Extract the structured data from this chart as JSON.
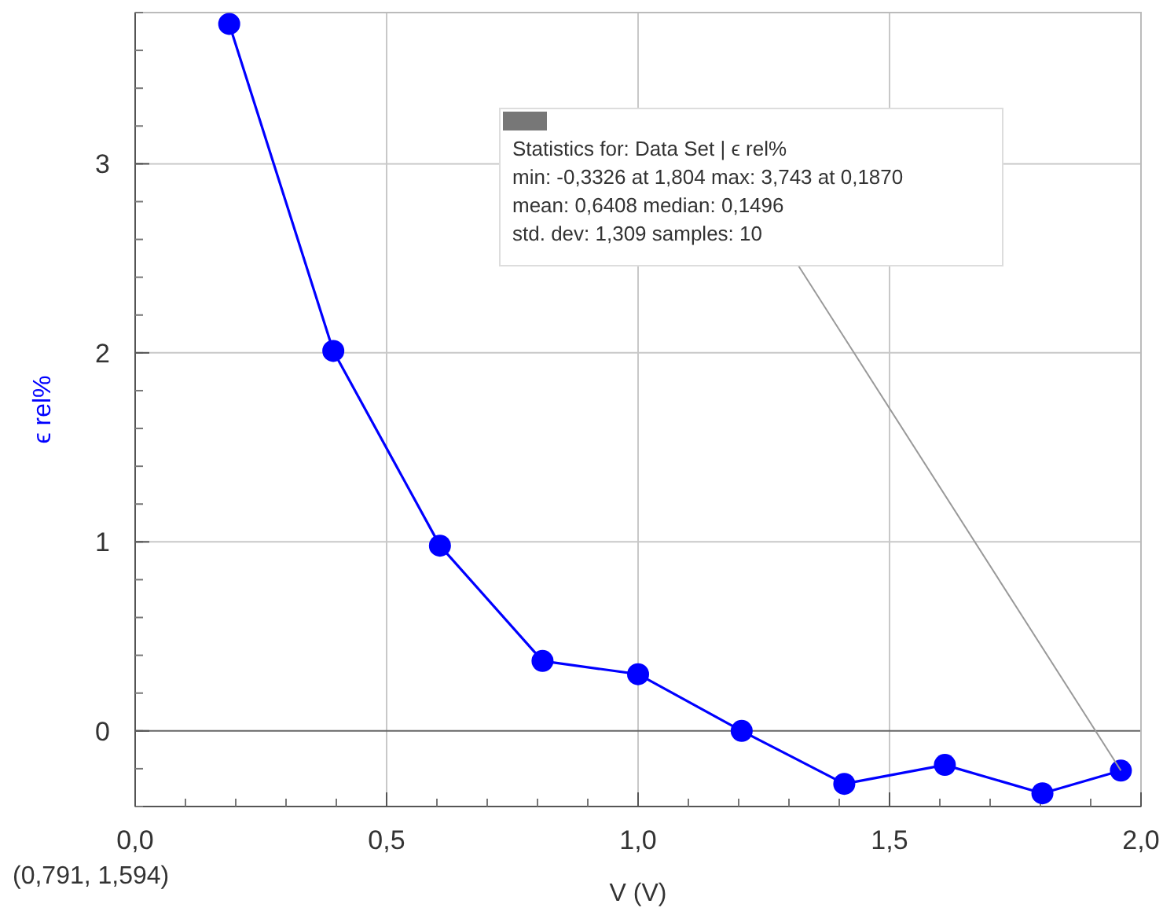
{
  "chart_data": {
    "type": "line",
    "xlabel": "V (V)",
    "ylabel": "ϵ rel%",
    "x": [
      0.187,
      0.394,
      0.606,
      0.81,
      1.0,
      1.206,
      1.41,
      1.61,
      1.804,
      1.96
    ],
    "series": [
      {
        "color": "#0000ff",
        "values": [
          3.74,
          2.01,
          0.98,
          0.37,
          0.3,
          0.0,
          -0.28,
          -0.18,
          -0.33,
          -0.21
        ]
      }
    ],
    "xlim": [
      0,
      2
    ],
    "xticks": [
      {
        "value": 0,
        "label": "0,0"
      },
      {
        "value": 0.5,
        "label": "0,5"
      },
      {
        "value": 1,
        "label": "1,0"
      },
      {
        "value": 1.5,
        "label": "1,5"
      },
      {
        "value": 2,
        "label": "2,0"
      }
    ],
    "ylim": [
      -0.4,
      3.8
    ],
    "yticks": [
      0,
      1,
      2,
      3
    ],
    "grid": true,
    "marker": "circle",
    "line_style": "solid",
    "annotations": [
      {
        "text": "Statistics for: Data Set | ϵ rel%\nmin: -0,3326 at 1,804 max: 3,743 at 0,1870\nmean: 0,6408 median: 0,1496\nstd. dev: 1,309 samples: 10",
        "x": 1.96,
        "y": -0.21
      },
      "(0,791, 1,594)"
    ]
  }
}
